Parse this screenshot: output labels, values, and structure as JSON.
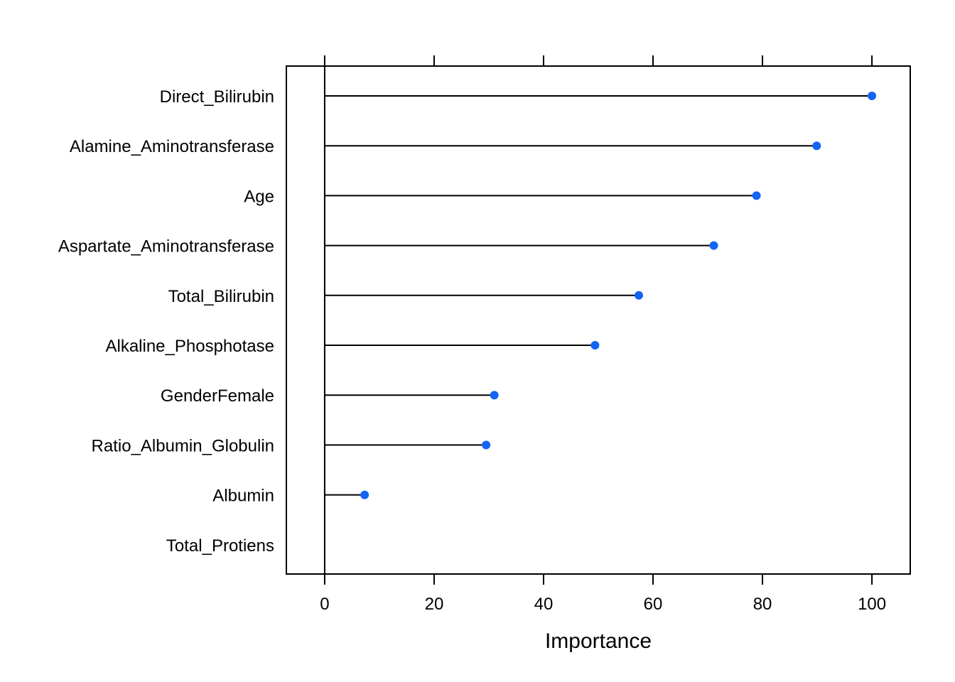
{
  "chart_data": {
    "type": "dot",
    "title": "",
    "xlabel": "Importance",
    "ylabel": "",
    "xlim": [
      -7,
      107
    ],
    "xticks": [
      0,
      20,
      40,
      60,
      80,
      100
    ],
    "grid": false,
    "categories": [
      "Direct_Bilirubin",
      "Alamine_Aminotransferase",
      "Age",
      "Aspartate_Aminotransferase",
      "Total_Bilirubin",
      "Alkaline_Phosphotase",
      "GenderFemale",
      "Ratio_Albumin_Globulin",
      "Albumin",
      "Total_Protiens"
    ],
    "values": [
      100,
      89.9,
      78.9,
      71.1,
      57.4,
      49.4,
      31.0,
      29.5,
      7.3,
      0
    ],
    "point_color": "#1464F4"
  }
}
